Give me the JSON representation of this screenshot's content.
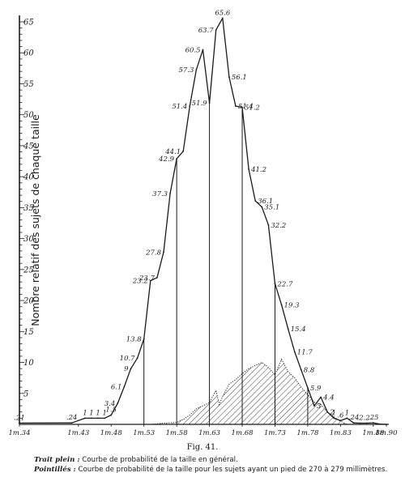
{
  "chart_data": {
    "type": "line",
    "ylabel": "Nombre relatif des sujets de chaque taille",
    "ylim": [
      0,
      65
    ],
    "yticks": [
      5,
      10,
      15,
      20,
      25,
      30,
      35,
      40,
      45,
      50,
      55,
      60,
      65
    ],
    "ytick_labels": [
      "5",
      "10",
      "15",
      "20",
      "25",
      "30",
      "35",
      "40",
      "45",
      "50",
      "55",
      "60",
      "65"
    ],
    "xlim": [
      1.34,
      1.9
    ],
    "xticks": [
      {
        "x": 1.34,
        "label": "1m.34"
      },
      {
        "x": 1.43,
        "label": "1m.43"
      },
      {
        "x": 1.48,
        "label": "1m.48"
      },
      {
        "x": 1.53,
        "label": "1m.53"
      },
      {
        "x": 1.58,
        "label": "1m.58"
      },
      {
        "x": 1.63,
        "label": "1m.63"
      },
      {
        "x": 1.68,
        "label": "1m.68"
      },
      {
        "x": 1.73,
        "label": "1m.73"
      },
      {
        "x": 1.78,
        "label": "1m.78"
      },
      {
        "x": 1.83,
        "label": "1m.83"
      },
      {
        "x": 1.88,
        "label": "1m.88"
      },
      {
        "x": 1.9,
        "label": "1m.90"
      }
    ],
    "series": [
      {
        "name": "Trait plein",
        "style": "solid",
        "color": "#1a1a1a",
        "points": [
          {
            "x": 1.34,
            "y": 0.21,
            "label": ".21"
          },
          {
            "x": 1.42,
            "y": 0.24,
            "label": ".24"
          },
          {
            "x": 1.44,
            "y": 1,
            "label": "1"
          },
          {
            "x": 1.45,
            "y": 1,
            "label": "1"
          },
          {
            "x": 1.46,
            "y": 1,
            "label": "1"
          },
          {
            "x": 1.47,
            "y": 1,
            "label": "1"
          },
          {
            "x": 1.48,
            "y": 1.5,
            "label": "1.5"
          },
          {
            "x": 1.49,
            "y": 3.4,
            "label": "3.4"
          },
          {
            "x": 1.5,
            "y": 6.1,
            "label": "6.1"
          },
          {
            "x": 1.51,
            "y": 9,
            "label": "9"
          },
          {
            "x": 1.52,
            "y": 10.7,
            "label": "10.7"
          },
          {
            "x": 1.53,
            "y": 13.8,
            "label": "13.8"
          },
          {
            "x": 1.54,
            "y": 23.2,
            "label": "23.2"
          },
          {
            "x": 1.55,
            "y": 23.7,
            "label": "23.7"
          },
          {
            "x": 1.56,
            "y": 27.8,
            "label": "27.8"
          },
          {
            "x": 1.57,
            "y": 37.3,
            "label": "37.3"
          },
          {
            "x": 1.58,
            "y": 42.9,
            "label": "42.9"
          },
          {
            "x": 1.59,
            "y": 44.1,
            "label": "44.1"
          },
          {
            "x": 1.6,
            "y": 51.4,
            "label": "51.4"
          },
          {
            "x": 1.61,
            "y": 57.3,
            "label": "57.3"
          },
          {
            "x": 1.62,
            "y": 60.5,
            "label": "60.5"
          },
          {
            "x": 1.63,
            "y": 51.9,
            "label": "51.9"
          },
          {
            "x": 1.64,
            "y": 63.7,
            "label": "63.7"
          },
          {
            "x": 1.65,
            "y": 65.6,
            "label": "65.6"
          },
          {
            "x": 1.66,
            "y": 56.1,
            "label": "56.1"
          },
          {
            "x": 1.67,
            "y": 51.4,
            "label": "51.4"
          },
          {
            "x": 1.68,
            "y": 51.2,
            "label": "51.2"
          },
          {
            "x": 1.69,
            "y": 41.2,
            "label": "41.2"
          },
          {
            "x": 1.7,
            "y": 36.1,
            "label": "36.1"
          },
          {
            "x": 1.71,
            "y": 35.1,
            "label": "35.1"
          },
          {
            "x": 1.72,
            "y": 32.2,
            "label": "32.2"
          },
          {
            "x": 1.73,
            "y": 22.7,
            "label": "22.7"
          },
          {
            "x": 1.74,
            "y": 19.3,
            "label": "19.3"
          },
          {
            "x": 1.75,
            "y": 15.4,
            "label": "15.4"
          },
          {
            "x": 1.76,
            "y": 11.7,
            "label": "11.7"
          },
          {
            "x": 1.77,
            "y": 8.8,
            "label": "8.8"
          },
          {
            "x": 1.78,
            "y": 5.9,
            "label": "5.9"
          },
          {
            "x": 1.79,
            "y": 3,
            "label": "3"
          },
          {
            "x": 1.8,
            "y": 4.4,
            "label": "4.4"
          },
          {
            "x": 1.81,
            "y": 2,
            "label": "2"
          },
          {
            "x": 1.82,
            "y": 1,
            "label": "1"
          },
          {
            "x": 1.83,
            "y": 0.6,
            "label": ".6"
          },
          {
            "x": 1.84,
            "y": 1,
            "label": "1"
          },
          {
            "x": 1.85,
            "y": 0.24,
            "label": ".24"
          },
          {
            "x": 1.86,
            "y": 0.2,
            "label": ".2"
          },
          {
            "x": 1.87,
            "y": 0.2,
            "label": ".2"
          },
          {
            "x": 1.88,
            "y": 0.25,
            "label": ".25"
          },
          {
            "x": 1.89,
            "y": 0.05,
            "label": ""
          },
          {
            "x": 1.9,
            "y": 0,
            "label": ""
          }
        ]
      },
      {
        "name": "Pointillés",
        "style": "dotted-hatched",
        "color": "#1a1a1a",
        "points": [
          {
            "x": 1.54,
            "y": 0
          },
          {
            "x": 1.56,
            "y": 0.2
          },
          {
            "x": 1.58,
            "y": 0.3
          },
          {
            "x": 1.59,
            "y": 0.8
          },
          {
            "x": 1.6,
            "y": 1.5
          },
          {
            "x": 1.61,
            "y": 2.5
          },
          {
            "x": 1.62,
            "y": 3
          },
          {
            "x": 1.63,
            "y": 3.5
          },
          {
            "x": 1.64,
            "y": 5.5
          },
          {
            "x": 1.645,
            "y": 3.2
          },
          {
            "x": 1.65,
            "y": 4.5
          },
          {
            "x": 1.66,
            "y": 6.5
          },
          {
            "x": 1.67,
            "y": 7.2
          },
          {
            "x": 1.68,
            "y": 8.2
          },
          {
            "x": 1.69,
            "y": 9
          },
          {
            "x": 1.7,
            "y": 9.5
          },
          {
            "x": 1.71,
            "y": 10
          },
          {
            "x": 1.72,
            "y": 9.2
          },
          {
            "x": 1.73,
            "y": 8
          },
          {
            "x": 1.74,
            "y": 10.5
          },
          {
            "x": 1.75,
            "y": 8.5
          },
          {
            "x": 1.76,
            "y": 7.5
          },
          {
            "x": 1.77,
            "y": 6
          },
          {
            "x": 1.78,
            "y": 4.8
          },
          {
            "x": 1.79,
            "y": 3.6
          },
          {
            "x": 1.8,
            "y": 3.2
          },
          {
            "x": 1.81,
            "y": 2
          },
          {
            "x": 1.82,
            "y": 1.2
          },
          {
            "x": 1.83,
            "y": 0.5
          },
          {
            "x": 1.84,
            "y": 0
          }
        ]
      }
    ],
    "vertical_lines": [
      1.53,
      1.58,
      1.63,
      1.68,
      1.73,
      1.78
    ],
    "grid": false,
    "legend": "bottom"
  },
  "caption": {
    "figure": "Fig. 41.",
    "legend": [
      {
        "key": "Trait plein :",
        "text": "Courbe de probabilité de la taille en général."
      },
      {
        "key": "Pointillés :",
        "text": "Courbe de probabilité de la taille pour les sujets ayant un pied de 270 à 279 millimètres."
      }
    ]
  }
}
